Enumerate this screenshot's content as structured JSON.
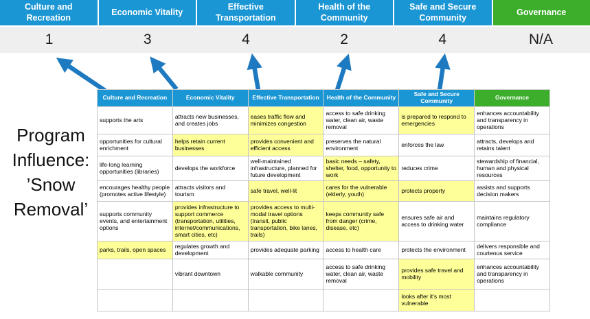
{
  "title": {
    "text": "Program Influence: ’Snow Removal’"
  },
  "colors": {
    "blue": "#1b96d4",
    "green": "#3dae2b",
    "yellow": "#ffff99",
    "arrow_blue": "#1e7ac0",
    "score_band": "#efefef"
  },
  "scoreband": {
    "categories": [
      {
        "label": "Culture and Recreation",
        "score": "1"
      },
      {
        "label": "Economic Vitality",
        "score": "3"
      },
      {
        "label": "Effective Transportation",
        "score": "4"
      },
      {
        "label": "Health of the Community",
        "score": "2"
      },
      {
        "label": "Safe and Secure Community",
        "score": "4"
      },
      {
        "label": "Governance",
        "score": "N/A"
      }
    ]
  },
  "matrix": {
    "headers": [
      "Culture and Recreation",
      "Economic Vitality",
      "Effective Transportation",
      "Health of the Community",
      "Safe and Secure Community",
      "Governance"
    ],
    "rows": [
      [
        {
          "text": "supports the arts",
          "highlight": false
        },
        {
          "text": "attracts new businesses, and creates jobs",
          "highlight": false
        },
        {
          "text": "eases traffic flow and minimizes congestion",
          "highlight": true
        },
        {
          "text": "access to safe drinking water, clean air, waste removal",
          "highlight": false
        },
        {
          "text": "is prepared to respond to emergencies",
          "highlight": true
        },
        {
          "text": "enhances accountability and transparency in operations",
          "highlight": false
        }
      ],
      [
        {
          "text": "opportunities for cultural enrichment",
          "highlight": false
        },
        {
          "text": "helps retain current businesses",
          "highlight": true
        },
        {
          "text": "provides convenient and efficient access",
          "highlight": true
        },
        {
          "text": "preserves the natural environment",
          "highlight": false
        },
        {
          "text": "enforces the law",
          "highlight": false
        },
        {
          "text": "attracts, develops and retains talent",
          "highlight": false
        }
      ],
      [
        {
          "text": "life-long learning opportunities (libraries)",
          "highlight": false
        },
        {
          "text": "develops the workforce",
          "highlight": false
        },
        {
          "text": "well-maintained infrastructure, planned for future development",
          "highlight": false
        },
        {
          "text": "basic needs – safety, shelter, food, opportunity to work",
          "highlight": true
        },
        {
          "text": "reduces crime",
          "highlight": false
        },
        {
          "text": "stewardship of financial, human and physical resources",
          "highlight": false
        }
      ],
      [
        {
          "text": "encourages healthy people (promotes active lifestyle)",
          "highlight": false
        },
        {
          "text": "attracts visitors and tourism",
          "highlight": false
        },
        {
          "text": "safe travel, well-lit",
          "highlight": true
        },
        {
          "text": "cares for the vulnerable (elderly, youth)",
          "highlight": true
        },
        {
          "text": "protects property",
          "highlight": true
        },
        {
          "text": "assists and supports decision makers",
          "highlight": false
        }
      ],
      [
        {
          "text": "supports community events, and entertainment options",
          "highlight": false
        },
        {
          "text": "provides infrastructure to support commerce (transportation, utilities, internet/communications, smart cities, etc)",
          "highlight": true
        },
        {
          "text": "provides access to multi-modal travel options (transit, public transportation, bike lanes, trails)",
          "highlight": true
        },
        {
          "text": "keeps community safe from danger (crime, disease, etc)",
          "highlight": true
        },
        {
          "text": "ensures safe air and access to drinking water",
          "highlight": false
        },
        {
          "text": "maintains regulatory compliance",
          "highlight": false
        }
      ],
      [
        {
          "text": "parks, trails, open spaces",
          "highlight": true
        },
        {
          "text": "regulates growth and development",
          "highlight": false
        },
        {
          "text": "provides adequate parking",
          "highlight": false
        },
        {
          "text": "access to health care",
          "highlight": false
        },
        {
          "text": "protects the environment",
          "highlight": false
        },
        {
          "text": "delivers responsible and courteous service",
          "highlight": false
        }
      ],
      [
        {
          "text": "",
          "highlight": false
        },
        {
          "text": "vibrant downtown",
          "highlight": false
        },
        {
          "text": "walkable community",
          "highlight": false
        },
        {
          "text": "access to safe drinking water, clean air, waste removal",
          "highlight": false
        },
        {
          "text": "provides safe travel and mobility",
          "highlight": true
        },
        {
          "text": "enhances accountability and transparency in operations",
          "highlight": false
        }
      ],
      [
        {
          "text": "",
          "highlight": false
        },
        {
          "text": "",
          "highlight": false
        },
        {
          "text": "",
          "highlight": false
        },
        {
          "text": "",
          "highlight": false
        },
        {
          "text": "looks after it’s most vulnerable",
          "highlight": true
        },
        {
          "text": "",
          "highlight": false
        }
      ]
    ]
  }
}
